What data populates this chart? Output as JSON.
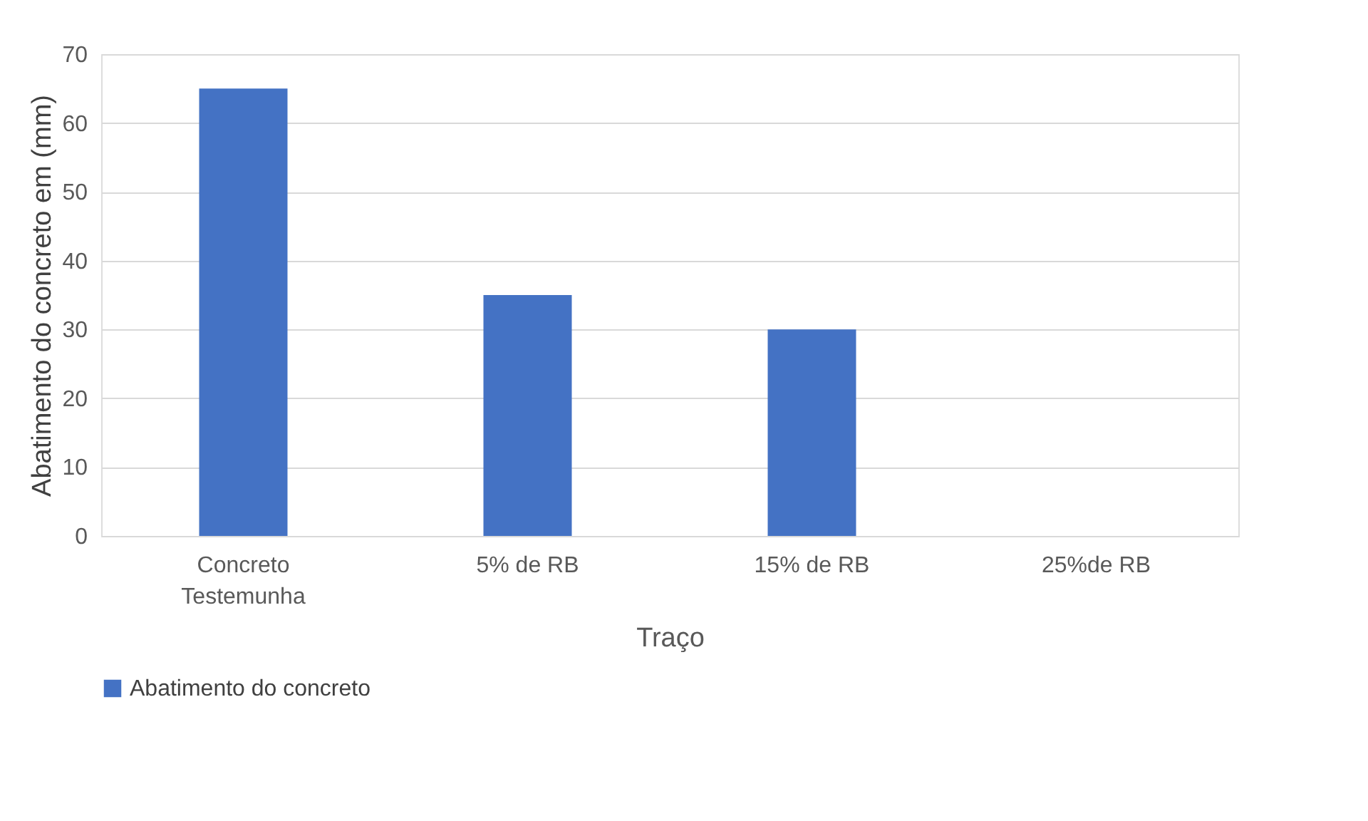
{
  "chart_data": {
    "type": "bar",
    "categories": [
      "Concreto Testemunha",
      "5% de RB",
      "15% de RB",
      "25%de RB"
    ],
    "series": [
      {
        "name": "Abatimento do concreto",
        "color": "#4472c4",
        "values": [
          65,
          35,
          30,
          0
        ]
      }
    ],
    "xlabel": "Traço",
    "ylabel": "Abatimento do concreto em (mm)",
    "ylim": [
      0,
      70
    ],
    "yticks": [
      0,
      10,
      20,
      30,
      40,
      50,
      60,
      70
    ],
    "grid": "y",
    "legend": "bottom"
  }
}
